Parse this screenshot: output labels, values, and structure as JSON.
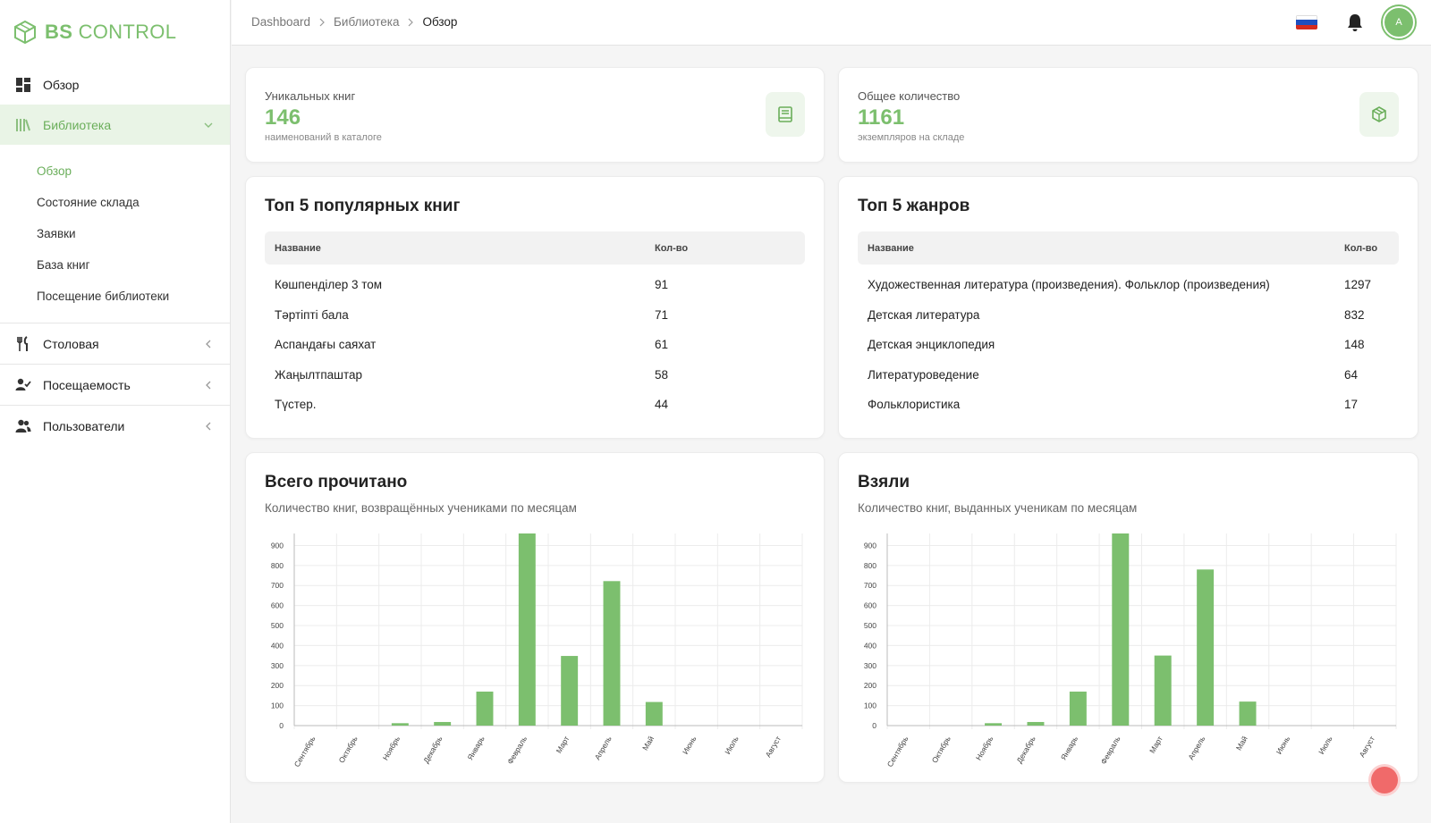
{
  "app": {
    "logo_bold": "BS",
    "logo_rest": " CONTROL"
  },
  "sidebar": {
    "items": [
      {
        "label": "Обзор",
        "icon": "dashboard-icon"
      },
      {
        "label": "Библиотека",
        "icon": "library-icon"
      },
      {
        "label": "Столовая",
        "icon": "cutlery-icon"
      },
      {
        "label": "Посещаемость",
        "icon": "user-check-icon"
      },
      {
        "label": "Пользователи",
        "icon": "users-icon"
      }
    ],
    "library_sub": [
      "Обзор",
      "Состояние склада",
      "Заявки",
      "База книг",
      "Посещение библиотеки"
    ]
  },
  "header": {
    "breadcrumb": [
      "Dashboard",
      "Библиотека",
      "Обзор"
    ],
    "avatar_initial": "A"
  },
  "stats": [
    {
      "label": "Уникальных книг",
      "value": "146",
      "sub": "наименований в каталоге",
      "icon": "book-icon"
    },
    {
      "label": "Общее количество",
      "value": "1161",
      "sub": "экземпляров на складе",
      "icon": "box-icon"
    }
  ],
  "top_books": {
    "title": "Топ 5 популярных книг",
    "headers": [
      "Название",
      "Кол-во"
    ],
    "rows": [
      [
        "Көшпенділер 3 том",
        "91"
      ],
      [
        "Тәртіпті бала",
        "71"
      ],
      [
        "Аспандағы саяхат",
        "61"
      ],
      [
        "Жаңылтпаштар",
        "58"
      ],
      [
        "Түстер.",
        "44"
      ]
    ]
  },
  "top_genres": {
    "title": "Топ 5 жанров",
    "headers": [
      "Название",
      "Кол-во"
    ],
    "rows": [
      [
        "Художественная литература (произведения). Фольклор (произведения)",
        "1297"
      ],
      [
        "Детская литература",
        "832"
      ],
      [
        "Детская энциклопедия",
        "148"
      ],
      [
        "Литературоведение",
        "64"
      ],
      [
        "Фольклористика",
        "17"
      ]
    ]
  },
  "colors": {
    "accent": "#7cbf6e",
    "bar": "#7cbf6e"
  },
  "chart_data": [
    {
      "type": "bar",
      "title": "Всего прочитано",
      "subtitle": "Количество книг, возвращённых учениками по месяцам",
      "categories": [
        "Сентябрь",
        "Октябрь",
        "Ноябрь",
        "Декабрь",
        "Январь",
        "Февраль",
        "Март",
        "Апрель",
        "Май",
        "Июнь",
        "Июль",
        "Август"
      ],
      "values": [
        0,
        0,
        12,
        18,
        170,
        960,
        348,
        722,
        118,
        0,
        0,
        0
      ],
      "yticks": [
        0,
        100,
        200,
        300,
        400,
        500,
        600,
        700,
        800,
        900
      ],
      "ylim": [
        0,
        960
      ],
      "grid": true
    },
    {
      "type": "bar",
      "title": "Взяли",
      "subtitle": "Количество книг, выданных ученикам по месяцам",
      "categories": [
        "Сентябрь",
        "Октябрь",
        "Ноябрь",
        "Декабрь",
        "Январь",
        "Февраль",
        "Март",
        "Апрель",
        "Май",
        "Июнь",
        "Июль",
        "Август"
      ],
      "values": [
        0,
        0,
        12,
        18,
        170,
        960,
        350,
        780,
        120,
        0,
        0,
        0
      ],
      "yticks": [
        0,
        100,
        200,
        300,
        400,
        500,
        600,
        700,
        800,
        900
      ],
      "ylim": [
        0,
        960
      ],
      "grid": true
    }
  ]
}
